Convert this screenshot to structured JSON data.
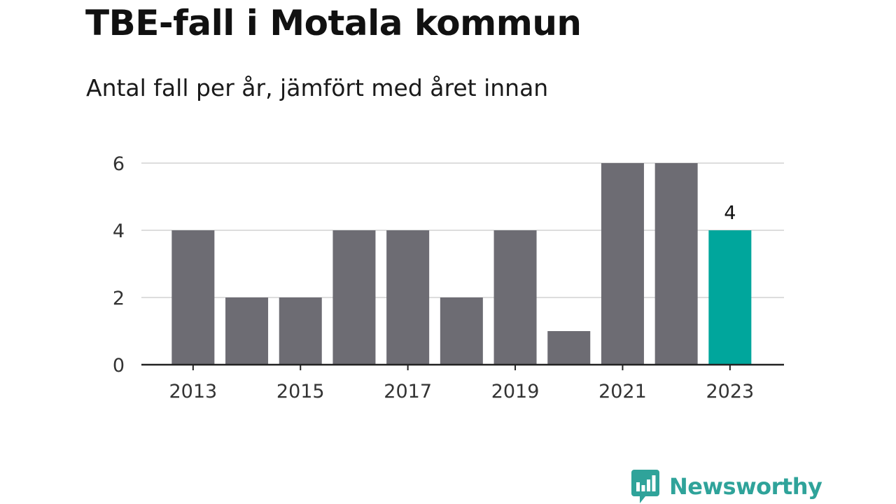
{
  "title": "TBE-fall i Motala kommun",
  "subtitle": "Antal fall per år, jämfört med året innan",
  "brand": {
    "name": "Newsworthy",
    "color": "#2fa39a",
    "icon": "bar-chart-speech-bubble-icon"
  },
  "colors": {
    "bar": "#6d6c73",
    "highlight": "#00a69c",
    "grid": "#dddddd",
    "axis": "#222222",
    "text": "#333333"
  },
  "chart_data": {
    "type": "bar",
    "categories": [
      "2013",
      "2014",
      "2015",
      "2016",
      "2017",
      "2018",
      "2019",
      "2020",
      "2021",
      "2022",
      "2023"
    ],
    "values": [
      4,
      2,
      2,
      4,
      4,
      2,
      4,
      1,
      6,
      6,
      4
    ],
    "xtick_labels": [
      "2013",
      "2015",
      "2017",
      "2019",
      "2021",
      "2023"
    ],
    "yticks": [
      0,
      2,
      4,
      6
    ],
    "ylim": [
      0,
      6
    ],
    "highlight_category": "2023",
    "data_labels": [
      {
        "category": "2023",
        "label": "4"
      }
    ],
    "grid": true,
    "xlabel": "",
    "ylabel": ""
  }
}
